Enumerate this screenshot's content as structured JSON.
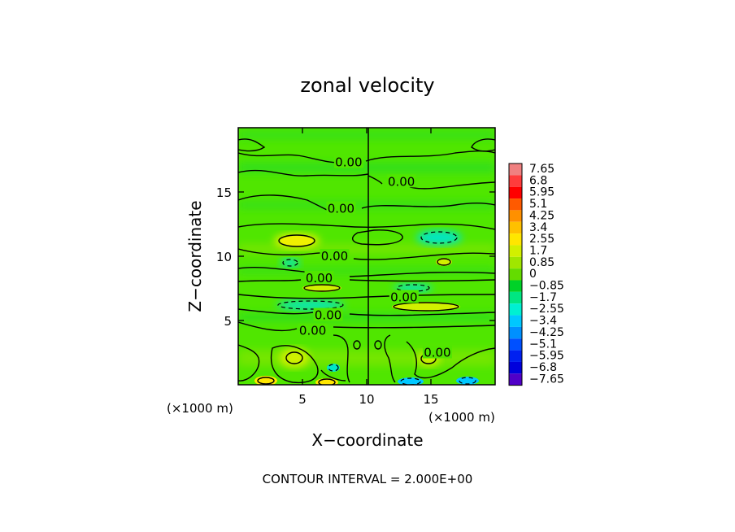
{
  "chart_data": {
    "type": "heatmap",
    "title": "zonal velocity",
    "xlabel": "X−coordinate",
    "ylabel": "Z−coordinate",
    "x_unit_label_left": "(×1000 m)",
    "x_unit_label_right": "(×1000 m)",
    "xlim": [
      0,
      20
    ],
    "ylim": [
      0,
      20
    ],
    "xticks": [
      5,
      10,
      15
    ],
    "xtick_labels": [
      "5",
      "10",
      "15"
    ],
    "yticks": [
      5,
      10,
      15
    ],
    "ytick_labels": [
      "5",
      "10",
      "15"
    ],
    "footer": "CONTOUR INTERVAL = 2.000E+00",
    "contour_label": "0.00",
    "contour_interval": 2.0,
    "colorbar": {
      "labels": [
        "7.65",
        "6.8",
        "5.95",
        "5.1",
        "4.25",
        "3.4",
        "2.55",
        "1.7",
        "0.85",
        "0",
        "−0.85",
        "−1.7",
        "−2.55",
        "−3.4",
        "−4.25",
        "−5.1",
        "−5.95",
        "−6.8",
        "−7.65"
      ],
      "colors": [
        "#f08080",
        "#ff3c3c",
        "#ff0000",
        "#ff5a00",
        "#ff9000",
        "#ffc000",
        "#ffe600",
        "#d2f000",
        "#a0e600",
        "#64dc00",
        "#00d228",
        "#00e682",
        "#00f0d2",
        "#00c8ff",
        "#0090ff",
        "#0050ff",
        "#0020f0",
        "#0000dc",
        "#5000c8"
      ]
    },
    "background_color": "#50e600",
    "contour_labels_zero": [
      {
        "x": 8.6,
        "z": 17.3
      },
      {
        "x": 12.7,
        "z": 15.8
      },
      {
        "x": 8.0,
        "z": 13.7
      },
      {
        "x": 7.5,
        "z": 10.0
      },
      {
        "x": 6.3,
        "z": 8.3
      },
      {
        "x": 12.9,
        "z": 6.8
      },
      {
        "x": 7.0,
        "z": 5.4
      },
      {
        "x": 5.8,
        "z": 4.2
      },
      {
        "x": 15.5,
        "z": 2.5
      }
    ]
  }
}
